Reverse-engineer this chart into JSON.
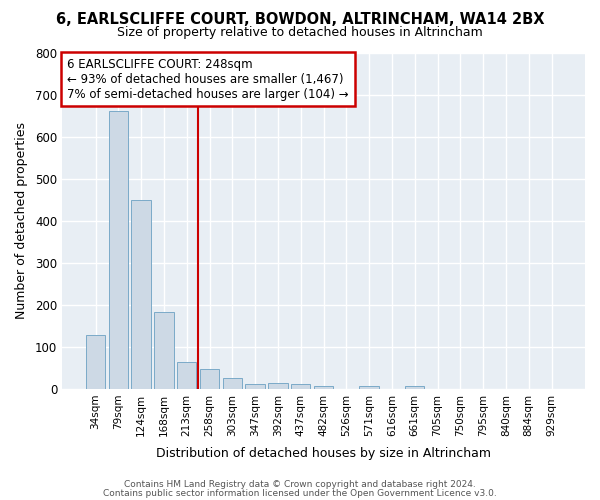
{
  "title": "6, EARLSCLIFFE COURT, BOWDON, ALTRINCHAM, WA14 2BX",
  "subtitle": "Size of property relative to detached houses in Altrincham",
  "xlabel": "Distribution of detached houses by size in Altrincham",
  "ylabel": "Number of detached properties",
  "bar_labels": [
    "34sqm",
    "79sqm",
    "124sqm",
    "168sqm",
    "213sqm",
    "258sqm",
    "303sqm",
    "347sqm",
    "392sqm",
    "437sqm",
    "482sqm",
    "526sqm",
    "571sqm",
    "616sqm",
    "661sqm",
    "705sqm",
    "750sqm",
    "795sqm",
    "840sqm",
    "884sqm",
    "929sqm"
  ],
  "bar_values": [
    128,
    660,
    450,
    183,
    63,
    48,
    27,
    11,
    13,
    12,
    6,
    0,
    6,
    0,
    8,
    0,
    0,
    0,
    0,
    0,
    0
  ],
  "bar_color": "#cdd9e5",
  "bar_edge_color": "#7baac8",
  "vline_color": "#cc0000",
  "annotation_title": "6 EARLSCLIFFE COURT: 248sqm",
  "annotation_line1": "← 93% of detached houses are smaller (1,467)",
  "annotation_line2": "7% of semi-detached houses are larger (104) →",
  "annotation_box_color": "#ffffff",
  "annotation_box_edge": "#cc0000",
  "ylim": [
    0,
    800
  ],
  "yticks": [
    0,
    100,
    200,
    300,
    400,
    500,
    600,
    700,
    800
  ],
  "background_color": "#e8eef4",
  "footer_line1": "Contains HM Land Registry data © Crown copyright and database right 2024.",
  "footer_line2": "Contains public sector information licensed under the Open Government Licence v3.0."
}
